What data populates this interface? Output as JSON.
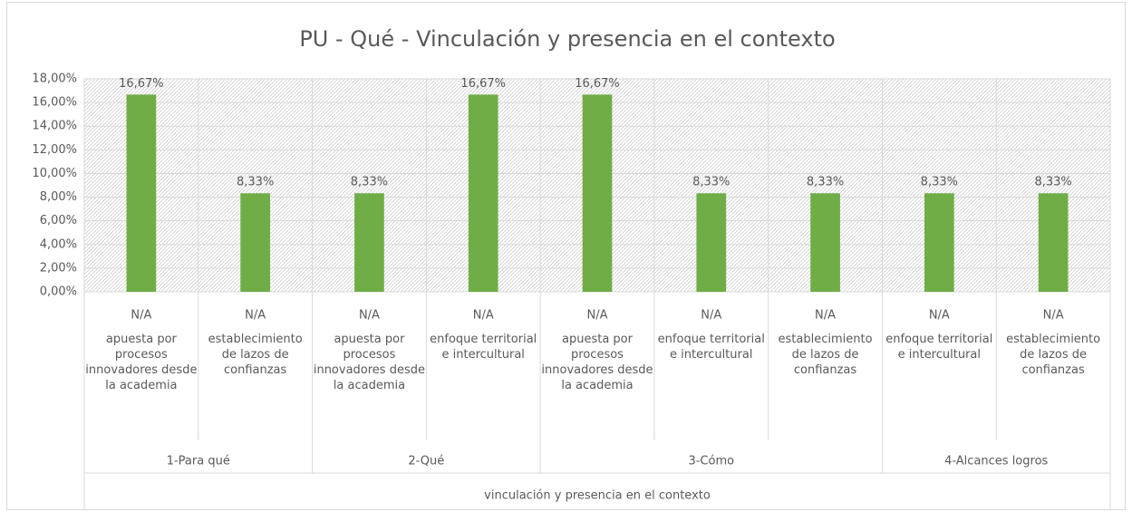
{
  "chart_data": {
    "type": "bar",
    "title": "PU - Qué - Vinculación y presencia en el contexto",
    "color": "#70ad47",
    "ylim": [
      0,
      18
    ],
    "yticks": [
      {
        "value": 0,
        "label": "0,00%"
      },
      {
        "value": 2,
        "label": "2,00%"
      },
      {
        "value": 4,
        "label": "4,00%"
      },
      {
        "value": 6,
        "label": "6,00%"
      },
      {
        "value": 8,
        "label": "8,00%"
      },
      {
        "value": 10,
        "label": "10,00%"
      },
      {
        "value": 12,
        "label": "12,00%"
      },
      {
        "value": 14,
        "label": "14,00%"
      },
      {
        "value": 16,
        "label": "16,00%"
      },
      {
        "value": 18,
        "label": "18,00%"
      }
    ],
    "grid": true,
    "axis_group": "vinculación y presencia en el contexto",
    "groups": [
      {
        "name": "1-Para qué",
        "sublabels": [
          "N/A",
          "N/A"
        ],
        "categories": [
          "apuesta por procesos innovadores desde la academia",
          "establecimiento de lazos de confianzas"
        ],
        "values": [
          16.67,
          8.33
        ],
        "value_labels": [
          "16,67%",
          "8,33%"
        ]
      },
      {
        "name": "2-Qué",
        "sublabels": [
          "N/A",
          "N/A"
        ],
        "categories": [
          "apuesta por procesos innovadores desde la academia",
          "enfoque territorial e intercultural"
        ],
        "values": [
          8.33,
          16.67
        ],
        "value_labels": [
          "8,33%",
          "16,67%"
        ]
      },
      {
        "name": "3-Cómo",
        "sublabels": [
          "N/A",
          "N/A",
          "N/A"
        ],
        "categories": [
          "apuesta por procesos innovadores desde la academia",
          "enfoque territorial e intercultural",
          "establecimiento de lazos de confianzas"
        ],
        "values": [
          16.67,
          8.33,
          8.33
        ],
        "value_labels": [
          "16,67%",
          "8,33%",
          "8,33%"
        ]
      },
      {
        "name": "4-Alcances logros",
        "sublabels": [
          "N/A",
          "N/A"
        ],
        "categories": [
          "enfoque territorial e intercultural",
          "establecimiento de lazos de confianzas"
        ],
        "values": [
          8.33,
          8.33
        ],
        "value_labels": [
          "8,33%",
          "8,33%"
        ]
      }
    ]
  }
}
